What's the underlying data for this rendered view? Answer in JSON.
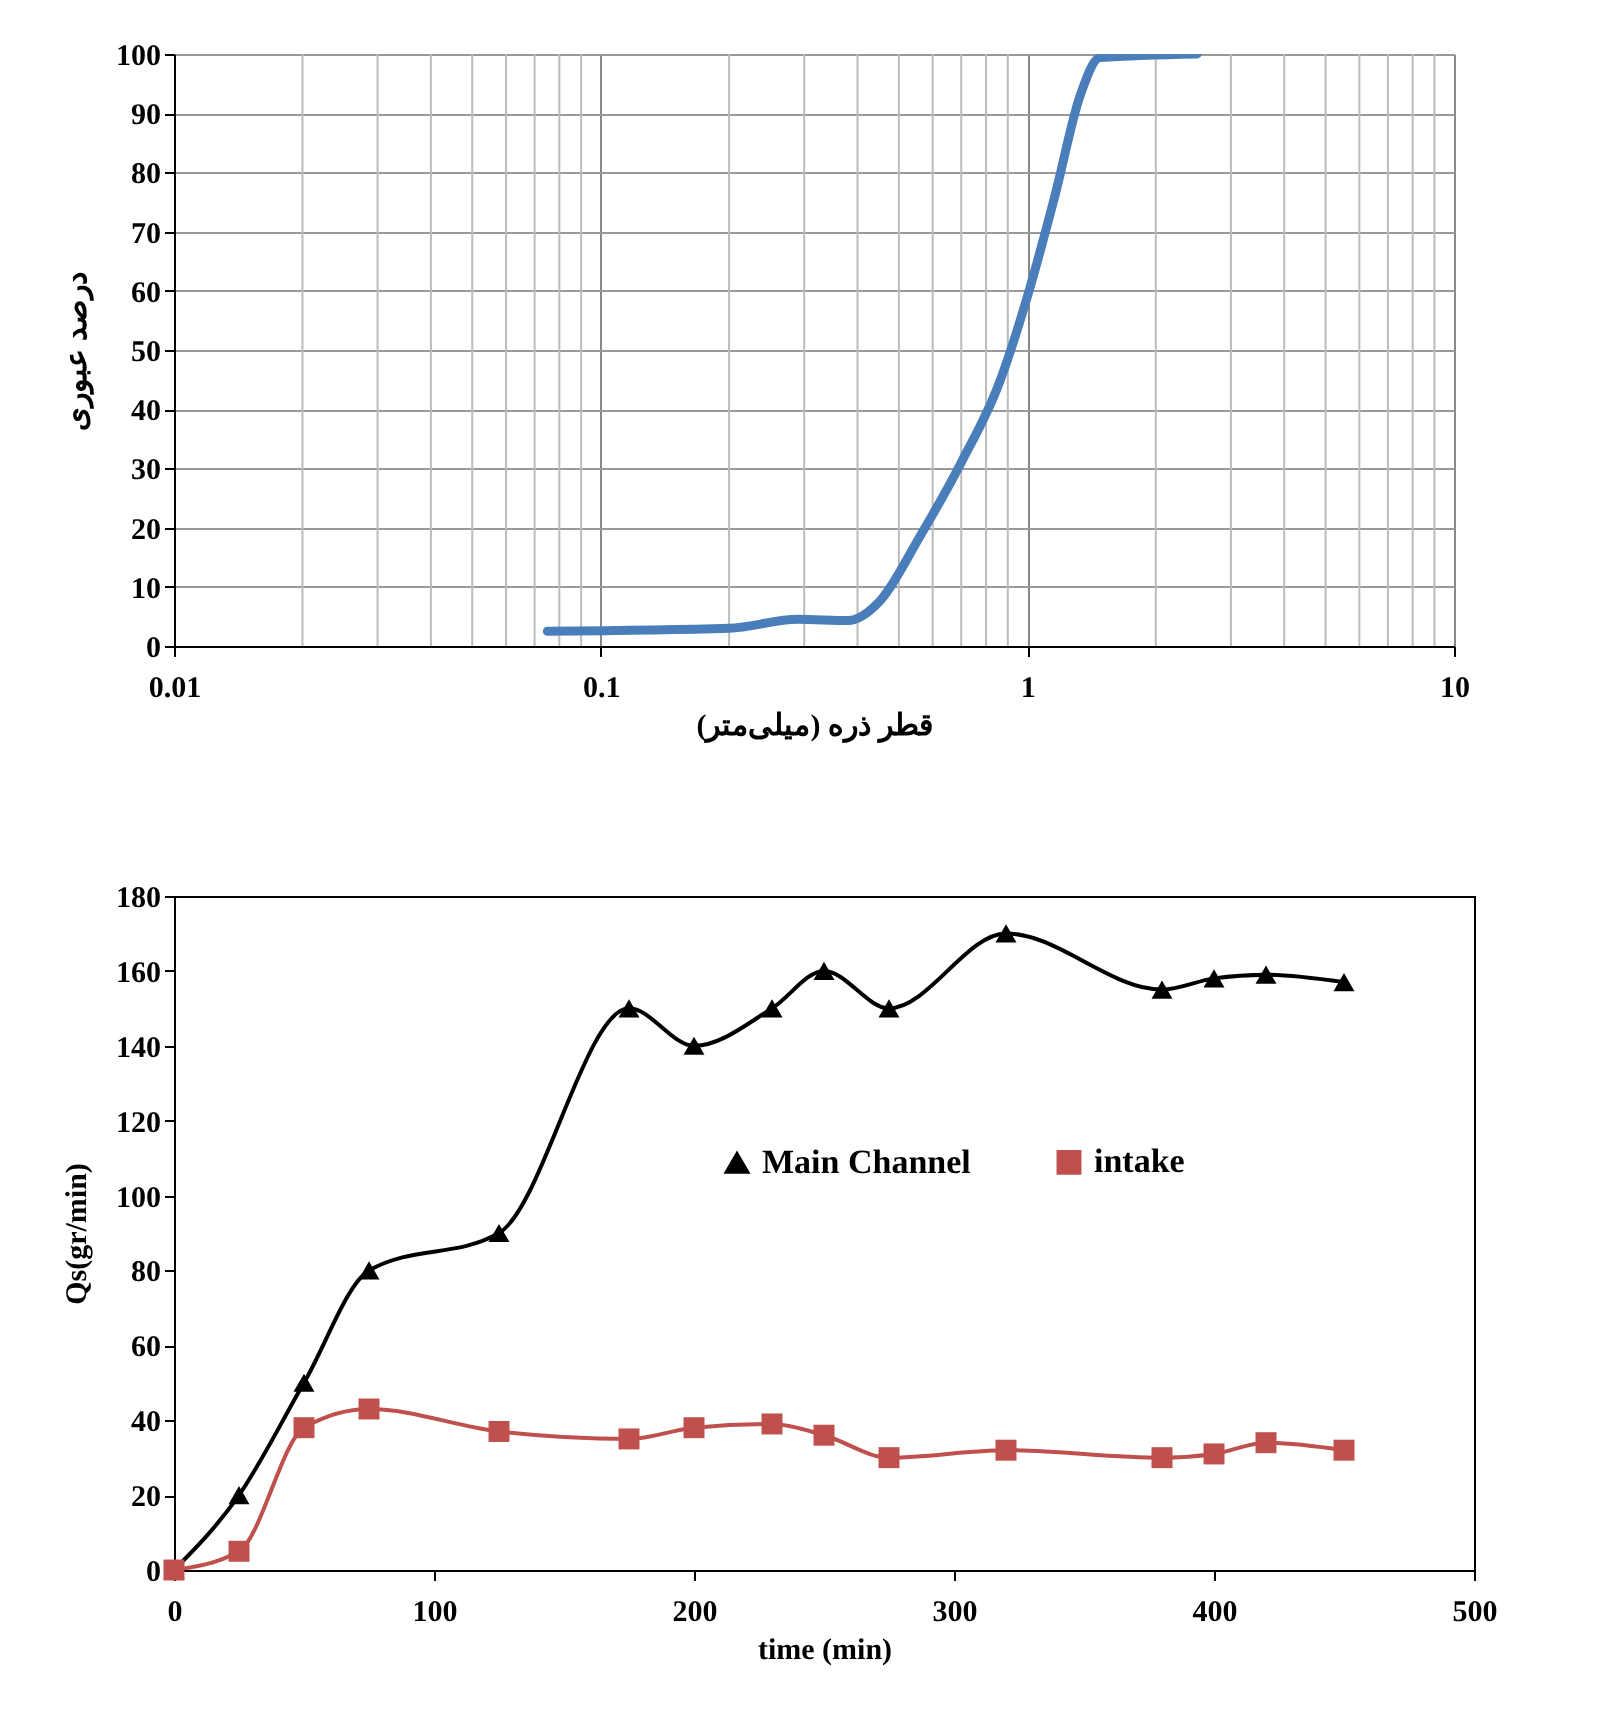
{
  "chart_data": [
    {
      "type": "line",
      "xlabel": "قطر ذره  (میلی‌متر)",
      "ylabel": "درصد عبوری",
      "log": "x",
      "grid": true,
      "xlim": [
        0.01,
        10
      ],
      "xticks": [
        0.01,
        0.1,
        1,
        10
      ],
      "ylim": [
        0,
        100
      ],
      "yticks": [
        0,
        10,
        20,
        30,
        40,
        50,
        60,
        70,
        80,
        90,
        100
      ],
      "x": [
        0.075,
        0.2,
        0.29,
        0.38,
        0.45,
        0.56,
        0.7,
        0.86,
        1.0,
        1.16,
        1.33,
        1.48,
        2.5
      ],
      "series": [
        {
          "color": "#4a7ebb",
          "values": [
            2.5,
            3,
            4.5,
            4.3,
            7.5,
            18.5,
            31,
            44.5,
            59,
            76,
            93,
            99.4,
            100
          ]
        }
      ]
    },
    {
      "type": "line",
      "xlabel": "time (min)",
      "ylabel": "Qs(gr/min)",
      "xlim": [
        0,
        500
      ],
      "xticks": [
        0,
        100,
        200,
        300,
        400,
        500
      ],
      "ylim": [
        0,
        180
      ],
      "yticks": [
        0,
        20,
        40,
        60,
        80,
        100,
        120,
        140,
        160,
        180
      ],
      "legend": "right",
      "x": [
        0,
        25,
        50,
        75,
        125,
        175,
        200,
        230,
        250,
        275,
        320,
        380,
        400,
        420,
        450
      ],
      "series": [
        {
          "name": "Main Channel",
          "color": "#000000",
          "marker": "triangle",
          "values": [
            0,
            20,
            50,
            80,
            90,
            150,
            140,
            150,
            160,
            150,
            170,
            155,
            158,
            159,
            157
          ]
        },
        {
          "name": "intake",
          "color": "#c0504d",
          "marker": "square",
          "values": [
            0,
            5,
            38,
            43,
            37,
            35,
            38,
            39,
            36,
            30,
            32,
            30,
            31,
            34,
            32
          ]
        }
      ]
    }
  ]
}
